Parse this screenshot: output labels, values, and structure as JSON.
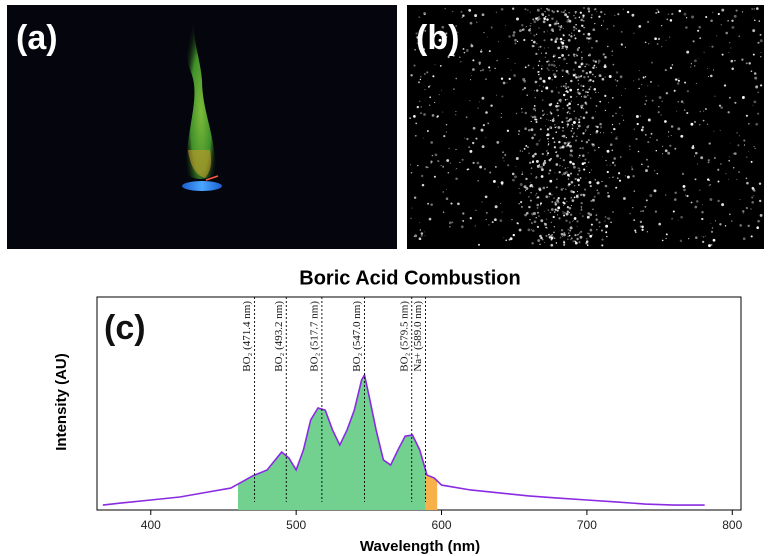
{
  "panel_labels": [
    "(a)",
    "(b)",
    "(c)"
  ],
  "chart_data": {
    "type": "line",
    "title": "Boric Acid Combustion",
    "x_label": "Wavelength (nm)",
    "y_label": "Intensity (AU)",
    "x": [
      367,
      380,
      400,
      420,
      440,
      455,
      460,
      470,
      480,
      490,
      495,
      500,
      505,
      510,
      515,
      520,
      525,
      530,
      535,
      540,
      545,
      547,
      550,
      555,
      560,
      565,
      570,
      575,
      580,
      585,
      590,
      595,
      600,
      620,
      640,
      660,
      680,
      700,
      720,
      740,
      760,
      781
    ],
    "series": [
      {
        "name": "Boric Acid Combustion",
        "color": "#8a2be2",
        "values": [
          2.3,
          3.3,
          4.7,
          6.1,
          8.5,
          10.3,
          12.2,
          16,
          18.8,
          27.2,
          24.4,
          18.8,
          28.2,
          42.3,
          47.9,
          46.9,
          37.6,
          30.5,
          37.6,
          46.9,
          61,
          63.4,
          54,
          37.6,
          23.5,
          21.1,
          28.2,
          34.7,
          35.2,
          28.2,
          16.4,
          15,
          11.7,
          9.4,
          8,
          6.6,
          5.6,
          4.7,
          3.8,
          2.8,
          2.3,
          2.3
        ]
      }
    ],
    "fill_ranges": [
      {
        "from": 460,
        "to": 589,
        "color": "#72d18e"
      },
      {
        "from": 589,
        "to": 597,
        "color": "#f7b04a"
      }
    ],
    "annotations": [
      {
        "x": 471.4,
        "label": "BO₂ (471.4 nm)"
      },
      {
        "x": 493.2,
        "label": "BO₂ (493.2 nm)"
      },
      {
        "x": 517.7,
        "label": "BO₂ (517.7 nm)"
      },
      {
        "x": 547.0,
        "label": "BO₂ (547.0 nm)"
      },
      {
        "x": 579.5,
        "label": "BO₂ (579.5 nm)"
      },
      {
        "x": 589.0,
        "label": "Na+ (589.0 nm)"
      }
    ],
    "xlim": [
      363,
      806
    ],
    "ylim": [
      0,
      100
    ],
    "xticks": [
      400,
      500,
      600,
      700,
      800
    ]
  }
}
